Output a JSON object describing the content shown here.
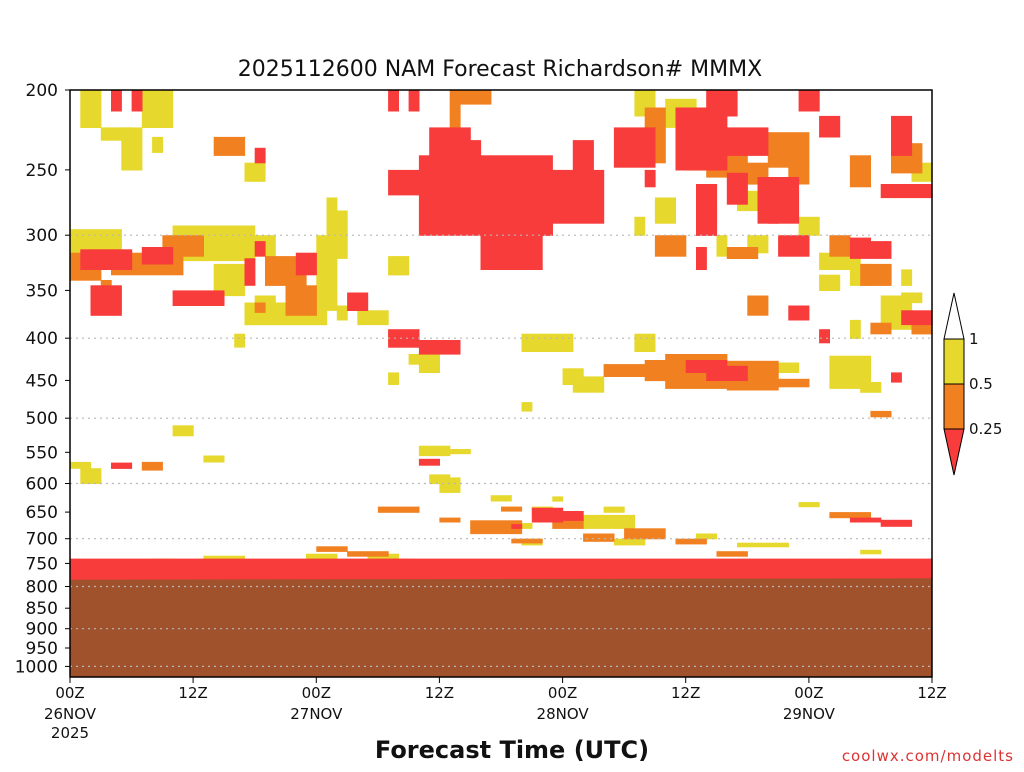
{
  "chart_data": {
    "type": "heatmap",
    "title": "2025112600 NAM Forecast Richardson# MMMX",
    "xlabel": "Forecast Time (UTC)",
    "ylabel": "",
    "credit": "coolwx.com/modelts",
    "x_range_hours": [
      0,
      84
    ],
    "y_axis": {
      "scale": "log-pressure",
      "range_hPa": [
        200,
        1030
      ],
      "tick_labels": [
        "200",
        "250",
        "300",
        "350",
        "400",
        "450",
        "500",
        "550",
        "600",
        "650",
        "700",
        "750",
        "800",
        "850",
        "900",
        "950",
        "1000"
      ],
      "gridlines_hPa": [
        300,
        400,
        500,
        600,
        700,
        800,
        900,
        1000
      ]
    },
    "x_ticks": [
      {
        "hour": 0,
        "label": "00Z",
        "date": "26NOV",
        "year": "2025"
      },
      {
        "hour": 12,
        "label": "12Z",
        "date": "",
        "year": ""
      },
      {
        "hour": 24,
        "label": "00Z",
        "date": "27NOV",
        "year": ""
      },
      {
        "hour": 36,
        "label": "12Z",
        "date": "",
        "year": ""
      },
      {
        "hour": 48,
        "label": "00Z",
        "date": "28NOV",
        "year": ""
      },
      {
        "hour": 60,
        "label": "12Z",
        "date": "",
        "year": ""
      },
      {
        "hour": 72,
        "label": "00Z",
        "date": "29NOV",
        "year": ""
      },
      {
        "hour": 84,
        "label": "12Z",
        "date": "",
        "year": ""
      }
    ],
    "legend": {
      "placement": "right",
      "thresholds": [
        "1",
        "0.5",
        "0.25"
      ],
      "categories": [
        {
          "label": "Ri > 1",
          "color": "#ffffff"
        },
        {
          "label": "0.5 - 1",
          "color": "#e6d82c"
        },
        {
          "label": "0.25 - 0.5",
          "color": "#f08020"
        },
        {
          "label": "< 0.25",
          "color": "#f83c3c"
        }
      ]
    },
    "ground": {
      "color": "#a0522d",
      "top_hPa_by_hour": [
        [
          0,
          785
        ],
        [
          84,
          782
        ]
      ]
    },
    "cell_series": [
      {
        "name": "Ri 0.5-1",
        "color": "#e6d82c",
        "cells": [
          [
            1,
            3,
            200,
            222
          ],
          [
            3,
            6,
            222,
            230
          ],
          [
            7,
            10,
            200,
            222
          ],
          [
            5,
            7,
            222,
            250
          ],
          [
            8,
            9,
            228,
            238
          ],
          [
            17,
            19,
            245,
            258
          ],
          [
            0,
            5,
            295,
            318
          ],
          [
            10,
            18,
            292,
            322
          ],
          [
            18,
            20,
            300,
            318
          ],
          [
            14,
            17,
            325,
            355
          ],
          [
            18,
            20,
            355,
            368
          ],
          [
            17,
            25,
            362,
            385
          ],
          [
            25,
            26,
            270,
            300
          ],
          [
            26,
            27,
            280,
            320
          ],
          [
            24,
            26,
            300,
            370
          ],
          [
            26,
            27,
            365,
            380
          ],
          [
            28,
            31,
            370,
            385
          ],
          [
            16,
            17,
            395,
            410
          ],
          [
            31,
            33,
            318,
            335
          ],
          [
            31,
            34,
            395,
            405
          ],
          [
            44,
            49,
            395,
            415
          ],
          [
            34,
            36,
            415,
            440
          ],
          [
            31,
            32,
            440,
            455
          ],
          [
            33,
            34,
            418,
            430
          ],
          [
            10,
            12,
            510,
            525
          ],
          [
            13,
            15,
            555,
            565
          ],
          [
            34,
            37,
            540,
            555
          ],
          [
            37,
            39,
            545,
            552
          ],
          [
            36,
            38,
            590,
            615
          ],
          [
            35,
            37,
            585,
            600
          ],
          [
            41,
            43,
            620,
            630
          ],
          [
            47,
            48,
            622,
            630
          ],
          [
            44,
            45,
            478,
            490
          ],
          [
            48,
            50,
            435,
            455
          ],
          [
            49,
            52,
            445,
            465
          ],
          [
            55,
            57,
            395,
            415
          ],
          [
            55,
            57,
            200,
            215
          ],
          [
            58,
            61,
            205,
            222
          ],
          [
            60,
            62,
            235,
            250
          ],
          [
            57,
            59,
            270,
            290
          ],
          [
            61,
            63,
            275,
            290
          ],
          [
            55,
            56,
            285,
            300
          ],
          [
            65,
            67,
            265,
            280
          ],
          [
            63,
            64,
            300,
            318
          ],
          [
            66,
            68,
            300,
            315
          ],
          [
            71,
            73,
            285,
            300
          ],
          [
            73,
            77,
            315,
            330
          ],
          [
            73,
            75,
            335,
            350
          ],
          [
            76,
            78,
            325,
            345
          ],
          [
            74,
            78,
            420,
            460
          ],
          [
            81,
            82,
            330,
            345
          ],
          [
            79,
            82,
            355,
            390
          ],
          [
            76,
            77,
            380,
            400
          ],
          [
            0,
            2,
            565,
            575
          ],
          [
            1,
            3,
            575,
            600
          ],
          [
            8,
            10,
            740,
            748
          ],
          [
            13,
            17,
            734,
            744
          ],
          [
            23,
            26,
            730,
            745
          ],
          [
            29,
            32,
            730,
            742
          ],
          [
            40,
            45,
            670,
            680
          ],
          [
            45,
            47,
            640,
            655
          ],
          [
            50,
            55,
            655,
            680
          ],
          [
            53,
            56,
            700,
            712
          ],
          [
            52,
            54,
            640,
            650
          ],
          [
            44,
            46,
            700,
            712
          ],
          [
            61,
            63,
            690,
            700
          ],
          [
            71,
            73,
            632,
            640
          ],
          [
            77,
            79,
            722,
            730
          ],
          [
            65,
            70,
            708,
            716
          ],
          [
            68,
            71,
            428,
            440
          ],
          [
            67,
            69,
            440,
            450
          ],
          [
            59,
            62,
            426,
            434
          ],
          [
            77,
            79,
            452,
            465
          ],
          [
            82,
            84,
            245,
            258
          ],
          [
            81,
            83,
            352,
            362
          ]
        ]
      },
      {
        "name": "Ri 0.25-0.5",
        "color": "#f08020",
        "cells": [
          [
            0,
            3,
            315,
            340
          ],
          [
            3,
            4,
            340,
            355
          ],
          [
            4,
            11,
            315,
            335
          ],
          [
            9,
            13,
            300,
            318
          ],
          [
            19,
            23,
            318,
            345
          ],
          [
            21,
            24,
            345,
            375
          ],
          [
            18,
            19,
            362,
            372
          ],
          [
            14,
            17,
            228,
            240
          ],
          [
            37,
            38,
            200,
            222
          ],
          [
            38,
            41,
            200,
            208
          ],
          [
            41,
            45,
            270,
            290
          ],
          [
            56,
            58,
            210,
            245
          ],
          [
            62,
            66,
            240,
            255
          ],
          [
            66,
            68,
            245,
            260
          ],
          [
            68,
            72,
            225,
            248
          ],
          [
            70,
            72,
            248,
            260
          ],
          [
            76,
            78,
            240,
            262
          ],
          [
            80,
            83,
            232,
            252
          ],
          [
            74,
            76,
            300,
            318
          ],
          [
            57,
            60,
            300,
            318
          ],
          [
            64,
            67,
            310,
            320
          ],
          [
            66,
            68,
            355,
            375
          ],
          [
            77,
            80,
            325,
            345
          ],
          [
            78,
            80,
            383,
            395
          ],
          [
            52,
            56,
            430,
            445
          ],
          [
            56,
            59,
            425,
            450
          ],
          [
            58,
            64,
            418,
            460
          ],
          [
            64,
            69,
            426,
            462
          ],
          [
            69,
            72,
            448,
            458
          ],
          [
            78,
            80,
            490,
            498
          ],
          [
            82,
            84,
            380,
            395
          ],
          [
            7,
            9,
            565,
            578
          ],
          [
            30,
            34,
            640,
            650
          ],
          [
            36,
            38,
            660,
            668
          ],
          [
            39,
            44,
            665,
            690
          ],
          [
            47,
            50,
            660,
            680
          ],
          [
            50,
            53,
            690,
            705
          ],
          [
            54,
            58,
            680,
            700
          ],
          [
            24,
            27,
            715,
            725
          ],
          [
            27,
            31,
            725,
            735
          ],
          [
            43,
            46,
            700,
            708
          ],
          [
            59,
            62,
            700,
            710
          ],
          [
            63,
            66,
            725,
            735
          ],
          [
            74,
            78,
            650,
            660
          ],
          [
            14,
            18,
            745,
            755
          ],
          [
            30,
            33,
            740,
            750
          ],
          [
            42,
            44,
            640,
            648
          ]
        ]
      },
      {
        "name": "Ri < 0.25",
        "color": "#f83c3c",
        "cells": [
          [
            4,
            5,
            200,
            212
          ],
          [
            6,
            7,
            200,
            212
          ],
          [
            18,
            19,
            235,
            245
          ],
          [
            31,
            32,
            200,
            212
          ],
          [
            33,
            34,
            200,
            212
          ],
          [
            35,
            39,
            222,
            250
          ],
          [
            31,
            34,
            250,
            268
          ],
          [
            34,
            47,
            240,
            300
          ],
          [
            40,
            46,
            252,
            330
          ],
          [
            46,
            52,
            250,
            290
          ],
          [
            44,
            47,
            290,
            300
          ],
          [
            37,
            40,
            230,
            270
          ],
          [
            49,
            51,
            230,
            250
          ],
          [
            53,
            57,
            222,
            248
          ],
          [
            56,
            57,
            250,
            262
          ],
          [
            59,
            64,
            210,
            250
          ],
          [
            64,
            68,
            222,
            240
          ],
          [
            62,
            65,
            200,
            215
          ],
          [
            61,
            63,
            260,
            300
          ],
          [
            64,
            66,
            252,
            275
          ],
          [
            67,
            71,
            255,
            290
          ],
          [
            69,
            72,
            300,
            318
          ],
          [
            68,
            69,
            260,
            290
          ],
          [
            71,
            73,
            200,
            212
          ],
          [
            73,
            75,
            215,
            228
          ],
          [
            80,
            82,
            215,
            240
          ],
          [
            79,
            84,
            260,
            270
          ],
          [
            76,
            78,
            302,
            320
          ],
          [
            78,
            80,
            305,
            320
          ],
          [
            61,
            62,
            310,
            330
          ],
          [
            2,
            5,
            345,
            375
          ],
          [
            1,
            6,
            312,
            330
          ],
          [
            7,
            10,
            310,
            325
          ],
          [
            10,
            15,
            350,
            365
          ],
          [
            17,
            18,
            320,
            345
          ],
          [
            18,
            19,
            305,
            318
          ],
          [
            22,
            24,
            315,
            335
          ],
          [
            27,
            29,
            352,
            370
          ],
          [
            31,
            34,
            390,
            410
          ],
          [
            34,
            38,
            402,
            418
          ],
          [
            62,
            66,
            432,
            450
          ],
          [
            60,
            64,
            425,
            440
          ],
          [
            70,
            72,
            365,
            380
          ],
          [
            81,
            84,
            370,
            385
          ],
          [
            73,
            74,
            390,
            405
          ],
          [
            80,
            81,
            440,
            452
          ],
          [
            34,
            36,
            560,
            570
          ],
          [
            4,
            6,
            566,
            575
          ],
          [
            45,
            48,
            642,
            668
          ],
          [
            43,
            44,
            672,
            680
          ],
          [
            48,
            50,
            648,
            665
          ],
          [
            76,
            79,
            660,
            668
          ],
          [
            79,
            82,
            664,
            676
          ],
          [
            0,
            84,
            740,
            785
          ]
        ]
      }
    ]
  }
}
